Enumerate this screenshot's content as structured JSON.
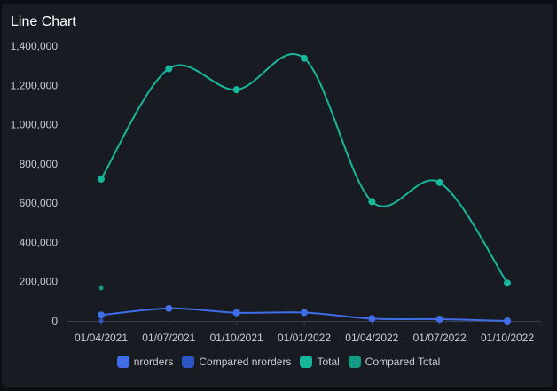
{
  "header": {
    "title": "Line Chart"
  },
  "chart_data": {
    "type": "line",
    "categories": [
      "01/04/2021",
      "01/07/2021",
      "01/10/2021",
      "01/01/2022",
      "01/04/2022",
      "01/07/2022",
      "01/10/2022"
    ],
    "series": [
      {
        "name": "nrorders",
        "color": "#3f6ee8",
        "values": [
          30000,
          64000,
          42000,
          43000,
          12000,
          9000,
          0
        ]
      },
      {
        "name": "Compared nrorders",
        "color": "#2e56c6",
        "values": [
          0,
          null,
          null,
          null,
          null,
          null,
          null
        ]
      },
      {
        "name": "Total",
        "color": "#16b79b",
        "values": [
          723000,
          1285000,
          1178000,
          1338000,
          608000,
          705000,
          193000
        ]
      },
      {
        "name": "Compared Total",
        "color": "#139a82",
        "values": [
          167000,
          null,
          null,
          null,
          null,
          null,
          null
        ]
      }
    ],
    "y_ticks": [
      "0",
      "200,000",
      "400,000",
      "600,000",
      "800,000",
      "1,000,000",
      "1,200,000",
      "1,400,000"
    ],
    "ylim": [
      0,
      1400000
    ],
    "legend": "bottom",
    "grid": false
  }
}
